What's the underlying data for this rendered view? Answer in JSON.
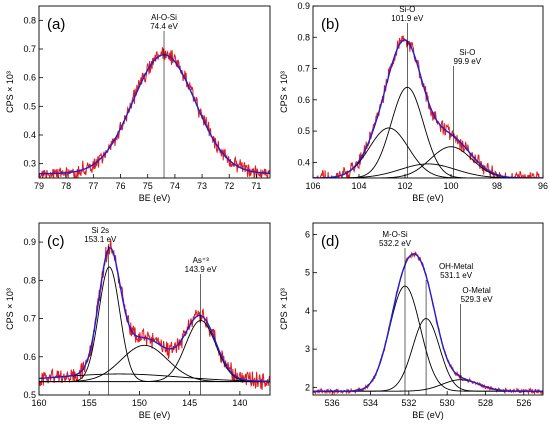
{
  "chart_data": [
    {
      "type": "line",
      "panel_label": "(a)",
      "xlabel": "BE (eV)",
      "ylabel": "CPS × 10³",
      "xlim": [
        79,
        70.5
      ],
      "x_reversed": true,
      "ylim": [
        0.25,
        0.85
      ],
      "xticks": [
        79,
        78,
        77,
        76,
        75,
        74,
        73,
        72,
        71
      ],
      "yticks": [
        0.3,
        0.4,
        0.5,
        0.6,
        0.7,
        0.8
      ],
      "background": 0.265,
      "peaks": [
        {
          "center": 74.4,
          "height": 0.415,
          "width": 1.15,
          "shape": "gaussian"
        }
      ],
      "noise": 0.022,
      "annotations": [
        {
          "x": 74.4,
          "lines": [
            "Al-O-Si",
            "74.4 eV"
          ],
          "marker": true
        }
      ],
      "series": [
        {
          "role": "experimental",
          "color": "#e31a1c"
        },
        {
          "role": "envelope",
          "color": "#1f1fd6"
        },
        {
          "role": "component",
          "color": "#000000"
        }
      ]
    },
    {
      "type": "line",
      "panel_label": "(b)",
      "xlabel": "BE (eV)",
      "ylabel": "CPS × 10³",
      "xlim": [
        106,
        96
      ],
      "x_reversed": true,
      "ylim": [
        0.35,
        0.9
      ],
      "xticks": [
        106,
        104,
        102,
        100,
        98,
        96
      ],
      "yticks": [
        0.4,
        0.5,
        0.6,
        0.7,
        0.8,
        0.9
      ],
      "background": 0.35,
      "peaks": [
        {
          "center": 102.7,
          "height": 0.16,
          "width": 0.85,
          "shape": "gaussian"
        },
        {
          "center": 101.9,
          "height": 0.29,
          "width": 0.7,
          "shape": "gaussian"
        },
        {
          "center": 100.0,
          "height": 0.1,
          "width": 0.9,
          "shape": "gaussian"
        },
        {
          "center": 101.0,
          "height": 0.045,
          "width": 1.2,
          "shape": "gaussian"
        }
      ],
      "noise": 0.018,
      "annotations": [
        {
          "x": 101.9,
          "lines": [
            "Si-O",
            "101.9 eV"
          ],
          "marker": true
        },
        {
          "x": 99.9,
          "lines": [
            "Si-O",
            "99.9 eV"
          ],
          "marker": true
        }
      ],
      "series": [
        {
          "role": "experimental",
          "color": "#e31a1c"
        },
        {
          "role": "envelope",
          "color": "#1f1fd6"
        },
        {
          "role": "component",
          "color": "#000000"
        }
      ]
    },
    {
      "type": "line",
      "panel_label": "(c)",
      "xlabel": "BE (eV)",
      "ylabel": "CPS × 10³",
      "xlim": [
        160,
        137
      ],
      "x_reversed": true,
      "ylim": [
        0.5,
        0.95
      ],
      "xticks": [
        160,
        155,
        150,
        145,
        140
      ],
      "yticks": [
        0.5,
        0.6,
        0.7,
        0.8,
        0.9
      ],
      "background": 0.535,
      "peaks": [
        {
          "center": 153.0,
          "height": 0.3,
          "width": 1.05,
          "shape": "gaussian"
        },
        {
          "center": 149.5,
          "height": 0.095,
          "width": 2.3,
          "shape": "gaussian"
        },
        {
          "center": 143.9,
          "height": 0.16,
          "width": 1.5,
          "shape": "gaussian"
        },
        {
          "center": 152.0,
          "height": 0.02,
          "width": 6.0,
          "shape": "gaussian"
        }
      ],
      "noise": 0.018,
      "annotations": [
        {
          "x": 153.1,
          "lines": [
            "Si 2s",
            "153.1 eV"
          ],
          "marker": true
        },
        {
          "x": 143.9,
          "lines": [
            "As⁺³",
            "143.9 eV"
          ],
          "marker": true
        }
      ],
      "series": [
        {
          "role": "experimental",
          "color": "#e31a1c"
        },
        {
          "role": "envelope",
          "color": "#1f1fd6"
        },
        {
          "role": "component",
          "color": "#000000"
        }
      ]
    },
    {
      "type": "line",
      "panel_label": "(d)",
      "xlabel": "BE (eV)",
      "ylabel": "CPS × 10³",
      "xlim": [
        537,
        525
      ],
      "x_reversed": true,
      "ylim": [
        1.8,
        6.3
      ],
      "xticks": [
        536,
        534,
        532,
        530,
        528,
        526
      ],
      "yticks": [
        2,
        3,
        4,
        5,
        6
      ],
      "background": 1.9,
      "peaks": [
        {
          "center": 532.2,
          "height": 2.75,
          "width": 0.8,
          "shape": "gaussian"
        },
        {
          "center": 531.1,
          "height": 1.9,
          "width": 0.7,
          "shape": "gaussian"
        },
        {
          "center": 529.3,
          "height": 0.3,
          "width": 0.95,
          "shape": "gaussian"
        }
      ],
      "noise": 0.05,
      "annotations": [
        {
          "x": 532.2,
          "lines": [
            "M-O-Si",
            "532.2 eV"
          ],
          "marker": true
        },
        {
          "x": 531.1,
          "lines": [
            "OH-Metal",
            "531.1 eV"
          ],
          "marker": true
        },
        {
          "x": 529.3,
          "lines": [
            "O-Metal",
            "529.3 eV"
          ],
          "marker": true
        }
      ],
      "series": [
        {
          "role": "experimental",
          "color": "#e31a1c"
        },
        {
          "role": "envelope",
          "color": "#1f1fd6"
        },
        {
          "role": "component",
          "color": "#000000"
        }
      ]
    }
  ]
}
